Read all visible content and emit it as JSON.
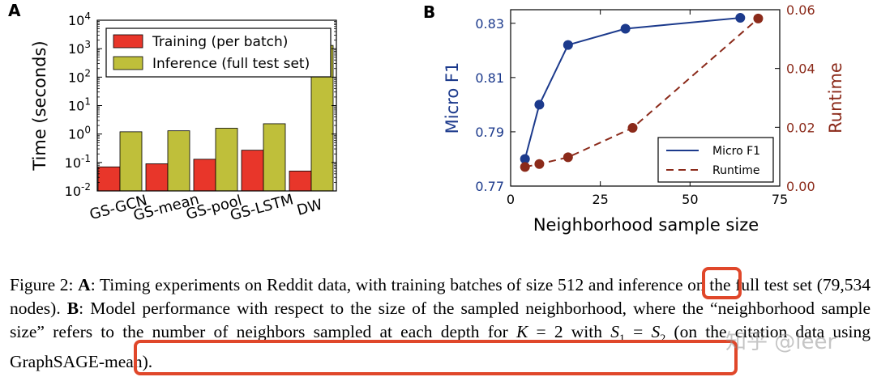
{
  "panel_a": {
    "letter": "A",
    "chart_data": {
      "type": "bar",
      "title": "",
      "xlabel": "",
      "ylabel": "Time (seconds)",
      "yscale": "log",
      "ylim": [
        0.01,
        10000
      ],
      "y_ticks": [
        {
          "value": 0.01,
          "base": "10",
          "exp": "-2"
        },
        {
          "value": 0.1,
          "base": "10",
          "exp": "-1"
        },
        {
          "value": 1,
          "base": "10",
          "exp": "0"
        },
        {
          "value": 10,
          "base": "10",
          "exp": "1"
        },
        {
          "value": 100,
          "base": "10",
          "exp": "2"
        },
        {
          "value": 1000,
          "base": "10",
          "exp": "3"
        },
        {
          "value": 10000,
          "base": "10",
          "exp": "4"
        }
      ],
      "categories": [
        "GS-GCN",
        "GS-mean",
        "GS-pool",
        "GS-LSTM",
        "DW"
      ],
      "series": [
        {
          "name": "Training (per batch)",
          "color": "#e8362a",
          "values": [
            0.07,
            0.09,
            0.13,
            0.27,
            0.05
          ]
        },
        {
          "name": "Inference (full test set)",
          "color": "#bfbf3a",
          "values": [
            1.2,
            1.3,
            1.6,
            2.3,
            1300
          ]
        }
      ],
      "legend_position": "top-left"
    }
  },
  "panel_b": {
    "letter": "B",
    "chart_data": {
      "type": "line",
      "xlabel": "Neighborhood sample size",
      "ylabel_left": "Micro F1",
      "ylabel_right": "Runtime",
      "xlim": [
        0,
        75
      ],
      "x_ticks": [
        "0",
        "25",
        "50",
        "75"
      ],
      "ylim_left": [
        0.77,
        0.835
      ],
      "y_ticks_left": [
        "0.77",
        "0.79",
        "0.81",
        "0.83"
      ],
      "ylim_right": [
        0.0,
        0.06
      ],
      "y_ticks_right": [
        "0.00",
        "0.02",
        "0.04",
        "0.06"
      ],
      "series": [
        {
          "name": "Micro F1",
          "axis": "left",
          "color": "#1c3a8c",
          "style": "solid",
          "x": [
            4,
            8,
            16,
            32,
            64
          ],
          "y": [
            0.78,
            0.8,
            0.822,
            0.828,
            0.832
          ]
        },
        {
          "name": "Runtime",
          "axis": "right",
          "color": "#8b2a1a",
          "style": "dashed",
          "x": [
            4,
            8,
            16,
            34,
            69
          ],
          "y": [
            0.0065,
            0.0075,
            0.0098,
            0.0198,
            0.057
          ]
        }
      ],
      "legend_position": "bottom-right"
    }
  },
  "caption": {
    "label": "Figure 2:",
    "a_letter": "A",
    "a_text": ": Timing experiments on Reddit data, with training batches of size",
    "batch_size": "512",
    "a_text2": "and inference on the full test set (79,534 nodes).",
    "b_letter": "B",
    "b_text": ": Model performance with respect to the size of the sampled neighborhood, where the “neighborhood sample size” refers to the number of neighbors sampled at each depth for",
    "k_var": "K",
    "k_eq": " = 2 with ",
    "s1": "S",
    "s1_sub": "1",
    "eq2": " = ",
    "s2": "S",
    "s2_sub": "2",
    "paren": " (on the citation data using GraphSAGE-mean)."
  },
  "watermark": "知乎 @leer"
}
